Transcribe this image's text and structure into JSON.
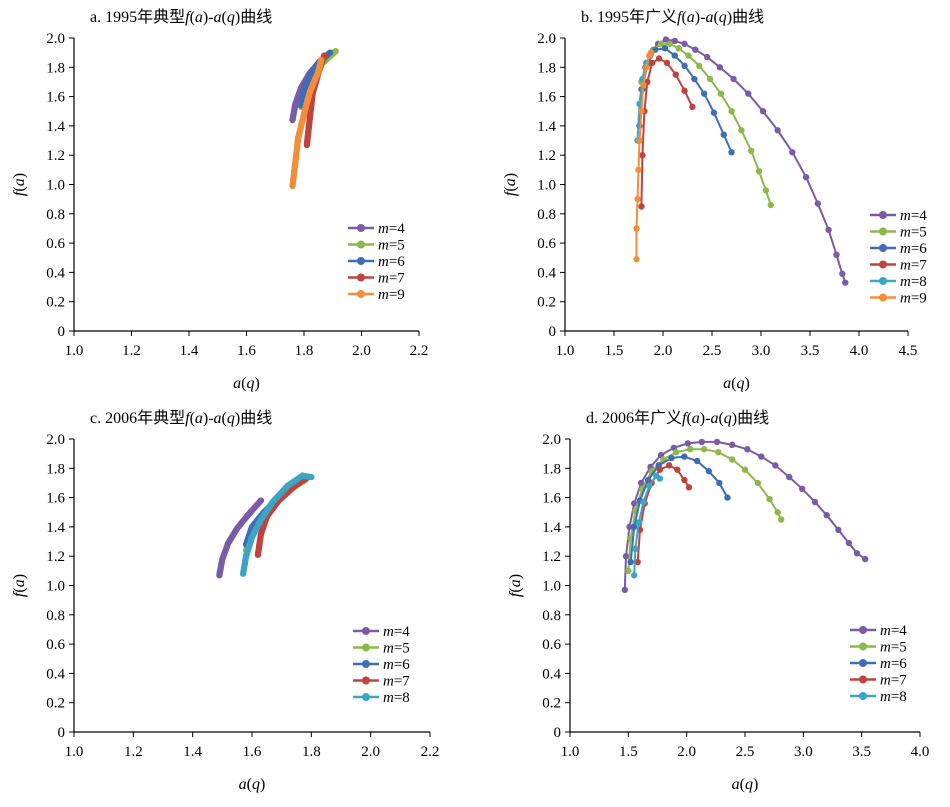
{
  "colors": {
    "m4": "#7B5BA8",
    "m5": "#8DB84A",
    "m6": "#3E6DB5",
    "m7": "#C0433E",
    "m8": "#3DA5C4",
    "m9": "#F08E3A"
  },
  "chart_data": [
    {
      "id": "a",
      "type": "scatter",
      "title": "a. 1995年典型f(a)-a(q)曲线",
      "xlabel": "a(q)",
      "ylabel": "f(a)",
      "xlim": [
        1.0,
        2.2
      ],
      "ylim": [
        0,
        2.0
      ],
      "xtick_step": 0.2,
      "ytick_step": 0.2,
      "xtick_decimals": 1,
      "grid": false,
      "legend": "right",
      "dense": true,
      "series": [
        {
          "name": "m=4",
          "color": "#7B5BA8",
          "points": [
            [
              1.76,
              1.44
            ],
            [
              1.77,
              1.55
            ],
            [
              1.79,
              1.66
            ],
            [
              1.82,
              1.76
            ],
            [
              1.86,
              1.85
            ],
            [
              1.9,
              1.9
            ]
          ]
        },
        {
          "name": "m=5",
          "color": "#8DB84A",
          "points": [
            [
              1.79,
              1.53
            ],
            [
              1.8,
              1.62
            ],
            [
              1.82,
              1.72
            ],
            [
              1.86,
              1.82
            ],
            [
              1.91,
              1.91
            ]
          ]
        },
        {
          "name": "m=6",
          "color": "#3E6DB5",
          "points": [
            [
              1.79,
              1.54
            ],
            [
              1.8,
              1.64
            ],
            [
              1.82,
              1.74
            ],
            [
              1.85,
              1.83
            ],
            [
              1.89,
              1.9
            ]
          ]
        },
        {
          "name": "m=7",
          "color": "#C0433E",
          "points": [
            [
              1.81,
              1.27
            ],
            [
              1.82,
              1.45
            ],
            [
              1.83,
              1.62
            ],
            [
              1.85,
              1.76
            ],
            [
              1.87,
              1.88
            ]
          ]
        },
        {
          "name": "m=9",
          "color": "#F08E3A",
          "points": [
            [
              1.76,
              0.99
            ],
            [
              1.77,
              1.15
            ],
            [
              1.78,
              1.32
            ],
            [
              1.8,
              1.48
            ],
            [
              1.82,
              1.63
            ],
            [
              1.85,
              1.77
            ],
            [
              1.86,
              1.85
            ]
          ]
        }
      ]
    },
    {
      "id": "b",
      "type": "scatter",
      "title": "b. 1995年广义f(a)-a(q)曲线",
      "xlabel": "a(q)",
      "ylabel": "f(a)",
      "xlim": [
        1.0,
        4.5
      ],
      "ylim": [
        0,
        2.0
      ],
      "xtick_step": 0.5,
      "ytick_step": 0.2,
      "xtick_decimals": 1,
      "grid": false,
      "legend": "right",
      "dense": false,
      "series": [
        {
          "name": "m=4",
          "color": "#7B5BA8",
          "points": [
            [
              1.78,
              1.65
            ],
            [
              1.82,
              1.8
            ],
            [
              1.88,
              1.9
            ],
            [
              1.95,
              1.96
            ],
            [
              2.03,
              1.99
            ],
            [
              2.12,
              1.98
            ],
            [
              2.22,
              1.96
            ],
            [
              2.33,
              1.92
            ],
            [
              2.45,
              1.87
            ],
            [
              2.58,
              1.8
            ],
            [
              2.72,
              1.72
            ],
            [
              2.87,
              1.62
            ],
            [
              3.02,
              1.5
            ],
            [
              3.17,
              1.37
            ],
            [
              3.32,
              1.22
            ],
            [
              3.46,
              1.05
            ],
            [
              3.58,
              0.87
            ],
            [
              3.69,
              0.69
            ],
            [
              3.77,
              0.52
            ],
            [
              3.83,
              0.39
            ],
            [
              3.86,
              0.33
            ]
          ]
        },
        {
          "name": "m=5",
          "color": "#8DB84A",
          "points": [
            [
              1.78,
              1.7
            ],
            [
              1.83,
              1.83
            ],
            [
              1.9,
              1.92
            ],
            [
              1.98,
              1.96
            ],
            [
              2.07,
              1.96
            ],
            [
              2.16,
              1.93
            ],
            [
              2.26,
              1.88
            ],
            [
              2.37,
              1.81
            ],
            [
              2.48,
              1.72
            ],
            [
              2.59,
              1.62
            ],
            [
              2.7,
              1.5
            ],
            [
              2.8,
              1.37
            ],
            [
              2.9,
              1.23
            ],
            [
              2.98,
              1.09
            ],
            [
              3.05,
              0.96
            ],
            [
              3.1,
              0.86
            ]
          ]
        },
        {
          "name": "m=6",
          "color": "#3E6DB5",
          "points": [
            [
              1.76,
              1.4
            ],
            [
              1.79,
              1.65
            ],
            [
              1.84,
              1.82
            ],
            [
              1.92,
              1.92
            ],
            [
              2.02,
              1.93
            ],
            [
              2.12,
              1.88
            ],
            [
              2.22,
              1.81
            ],
            [
              2.32,
              1.72
            ],
            [
              2.42,
              1.62
            ],
            [
              2.52,
              1.49
            ],
            [
              2.62,
              1.34
            ],
            [
              2.7,
              1.22
            ]
          ]
        },
        {
          "name": "m=7",
          "color": "#C0433E",
          "points": [
            [
              1.78,
              0.85
            ],
            [
              1.79,
              1.2
            ],
            [
              1.81,
              1.5
            ],
            [
              1.84,
              1.7
            ],
            [
              1.89,
              1.83
            ],
            [
              1.96,
              1.86
            ],
            [
              2.04,
              1.83
            ],
            [
              2.13,
              1.75
            ],
            [
              2.22,
              1.64
            ],
            [
              2.3,
              1.53
            ]
          ]
        },
        {
          "name": "m=8",
          "color": "#3DA5C4",
          "points": [
            [
              1.74,
              1.3
            ],
            [
              1.76,
              1.55
            ],
            [
              1.79,
              1.72
            ],
            [
              1.83,
              1.83
            ],
            [
              1.87,
              1.88
            ]
          ]
        },
        {
          "name": "m=9",
          "color": "#F08E3A",
          "points": [
            [
              1.73,
              0.49
            ],
            [
              1.73,
              0.7
            ],
            [
              1.74,
              0.9
            ],
            [
              1.75,
              1.1
            ],
            [
              1.76,
              1.3
            ],
            [
              1.78,
              1.5
            ],
            [
              1.8,
              1.68
            ],
            [
              1.83,
              1.8
            ],
            [
              1.86,
              1.88
            ],
            [
              1.88,
              1.9
            ]
          ]
        }
      ]
    },
    {
      "id": "c",
      "type": "scatter",
      "title": "c. 2006年典型f(a)-a(q)曲线",
      "xlabel": "a(q)",
      "ylabel": "f(a)",
      "xlim": [
        1.0,
        2.2
      ],
      "ylim": [
        0,
        2.0
      ],
      "xtick_step": 0.2,
      "ytick_step": 0.2,
      "xtick_decimals": 1,
      "grid": false,
      "legend": "right",
      "dense": true,
      "series": [
        {
          "name": "m=4",
          "color": "#7B5BA8",
          "points": [
            [
              1.49,
              1.07
            ],
            [
              1.5,
              1.18
            ],
            [
              1.52,
              1.29
            ],
            [
              1.55,
              1.39
            ],
            [
              1.59,
              1.49
            ],
            [
              1.63,
              1.58
            ]
          ]
        },
        {
          "name": "m=5",
          "color": "#8DB84A",
          "points": [
            [
              1.58,
              1.24
            ],
            [
              1.6,
              1.36
            ],
            [
              1.63,
              1.46
            ],
            [
              1.67,
              1.56
            ],
            [
              1.72,
              1.65
            ],
            [
              1.78,
              1.72
            ]
          ]
        },
        {
          "name": "m=6",
          "color": "#3E6DB5",
          "points": [
            [
              1.58,
              1.28
            ],
            [
              1.6,
              1.4
            ],
            [
              1.64,
              1.5
            ],
            [
              1.69,
              1.6
            ],
            [
              1.74,
              1.68
            ],
            [
              1.79,
              1.74
            ]
          ]
        },
        {
          "name": "m=7",
          "color": "#C0433E",
          "points": [
            [
              1.62,
              1.21
            ],
            [
              1.63,
              1.35
            ],
            [
              1.65,
              1.47
            ],
            [
              1.69,
              1.58
            ],
            [
              1.74,
              1.67
            ],
            [
              1.78,
              1.73
            ]
          ]
        },
        {
          "name": "m=8",
          "color": "#3DA5C4",
          "points": [
            [
              1.57,
              1.08
            ],
            [
              1.58,
              1.2
            ],
            [
              1.6,
              1.33
            ],
            [
              1.63,
              1.45
            ],
            [
              1.67,
              1.57
            ],
            [
              1.72,
              1.68
            ],
            [
              1.77,
              1.75
            ],
            [
              1.8,
              1.74
            ]
          ]
        }
      ]
    },
    {
      "id": "d",
      "type": "scatter",
      "title": "d. 2006年广义f(a)-a(q)曲线",
      "xlabel": "a(q)",
      "ylabel": "f(a)",
      "xlim": [
        1.0,
        4.0
      ],
      "ylim": [
        0,
        2.0
      ],
      "xtick_step": 0.5,
      "ytick_step": 0.2,
      "xtick_decimals": 1,
      "grid": false,
      "legend": "right",
      "dense": false,
      "series": [
        {
          "name": "m=4",
          "color": "#7B5BA8",
          "points": [
            [
              1.47,
              0.97
            ],
            [
              1.48,
              1.2
            ],
            [
              1.51,
              1.4
            ],
            [
              1.55,
              1.56
            ],
            [
              1.61,
              1.7
            ],
            [
              1.69,
              1.81
            ],
            [
              1.78,
              1.89
            ],
            [
              1.89,
              1.94
            ],
            [
              2.01,
              1.97
            ],
            [
              2.13,
              1.98
            ],
            [
              2.26,
              1.98
            ],
            [
              2.39,
              1.96
            ],
            [
              2.52,
              1.93
            ],
            [
              2.64,
              1.88
            ],
            [
              2.76,
              1.82
            ],
            [
              2.88,
              1.74
            ],
            [
              2.99,
              1.66
            ],
            [
              3.1,
              1.57
            ],
            [
              3.2,
              1.48
            ],
            [
              3.3,
              1.38
            ],
            [
              3.39,
              1.29
            ],
            [
              3.46,
              1.22
            ],
            [
              3.53,
              1.18
            ]
          ]
        },
        {
          "name": "m=5",
          "color": "#8DB84A",
          "points": [
            [
              1.5,
              1.1
            ],
            [
              1.52,
              1.32
            ],
            [
              1.56,
              1.51
            ],
            [
              1.62,
              1.66
            ],
            [
              1.7,
              1.78
            ],
            [
              1.8,
              1.86
            ],
            [
              1.91,
              1.91
            ],
            [
              2.03,
              1.93
            ],
            [
              2.15,
              1.93
            ],
            [
              2.27,
              1.91
            ],
            [
              2.39,
              1.86
            ],
            [
              2.5,
              1.79
            ],
            [
              2.61,
              1.7
            ],
            [
              2.71,
              1.59
            ],
            [
              2.78,
              1.5
            ],
            [
              2.81,
              1.45
            ]
          ]
        },
        {
          "name": "m=6",
          "color": "#3E6DB5",
          "points": [
            [
              1.52,
              1.16
            ],
            [
              1.55,
              1.4
            ],
            [
              1.6,
              1.58
            ],
            [
              1.67,
              1.72
            ],
            [
              1.76,
              1.82
            ],
            [
              1.87,
              1.87
            ],
            [
              1.98,
              1.88
            ],
            [
              2.09,
              1.85
            ],
            [
              2.19,
              1.78
            ],
            [
              2.28,
              1.7
            ],
            [
              2.35,
              1.6
            ]
          ]
        },
        {
          "name": "m=7",
          "color": "#C0433E",
          "points": [
            [
              1.58,
              1.16
            ],
            [
              1.6,
              1.38
            ],
            [
              1.64,
              1.56
            ],
            [
              1.7,
              1.7
            ],
            [
              1.77,
              1.79
            ],
            [
              1.85,
              1.82
            ],
            [
              1.92,
              1.79
            ],
            [
              1.98,
              1.72
            ],
            [
              2.02,
              1.67
            ]
          ]
        },
        {
          "name": "m=8",
          "color": "#3DA5C4",
          "points": [
            [
              1.55,
              1.07
            ],
            [
              1.56,
              1.25
            ],
            [
              1.59,
              1.43
            ],
            [
              1.63,
              1.57
            ],
            [
              1.68,
              1.68
            ],
            [
              1.74,
              1.75
            ],
            [
              1.77,
              1.73
            ]
          ]
        }
      ]
    }
  ]
}
